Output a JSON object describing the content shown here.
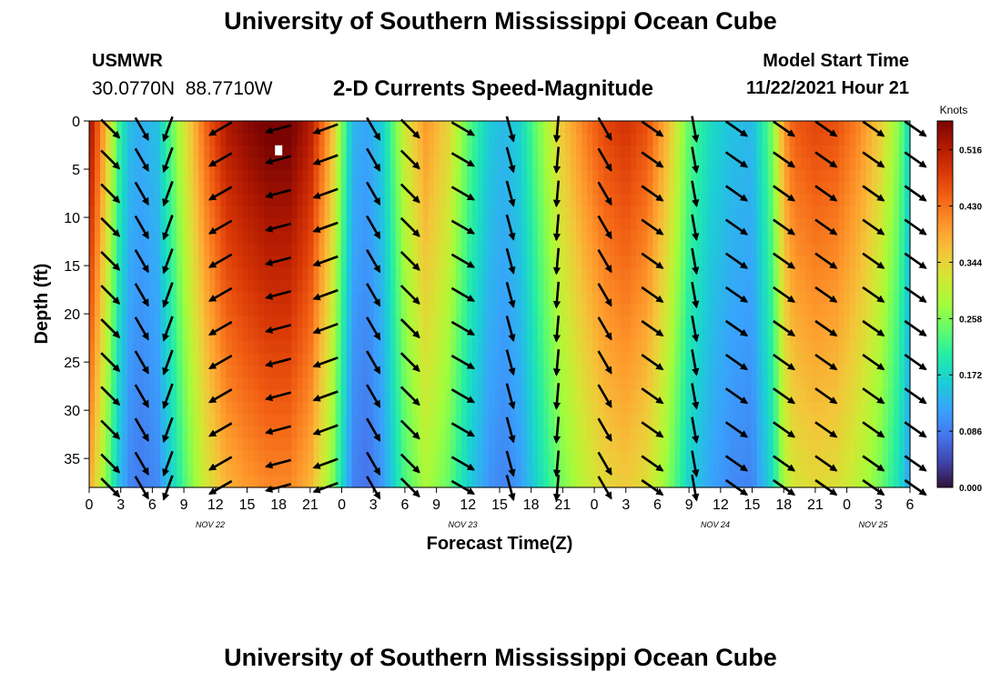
{
  "header": {
    "title": "University of Southern Mississippi Ocean Cube",
    "station": "USMWR",
    "latitude": "30.0770N",
    "longitude": "88.7710W",
    "subtitle": "2-D Currents Speed-Magnitude",
    "model_start_label": "Model Start Time",
    "model_start_value": "11/22/2021 Hour 21"
  },
  "footer": {
    "title": "University of Southern Mississippi Ocean Cube"
  },
  "chart_data": {
    "type": "heatmap",
    "xlabel": "Forecast Time(Z)",
    "ylabel": "Depth (ft)",
    "x_range_hours": [
      0,
      78
    ],
    "y_range_ft": [
      0,
      38
    ],
    "y_ticks": [
      0,
      5,
      10,
      15,
      20,
      25,
      30,
      35
    ],
    "x_tick_labels": [
      "0",
      "3",
      "6",
      "9",
      "12",
      "15",
      "18",
      "21",
      "0",
      "3",
      "6",
      "9",
      "12",
      "15",
      "18",
      "21",
      "0",
      "3",
      "6",
      "9",
      "12",
      "15",
      "18",
      "21",
      "0",
      "3",
      "6"
    ],
    "x_tick_hours": [
      0,
      3,
      6,
      9,
      12,
      15,
      18,
      21,
      24,
      27,
      30,
      33,
      36,
      39,
      42,
      45,
      48,
      51,
      54,
      57,
      60,
      63,
      66,
      69,
      72,
      75,
      78
    ],
    "date_labels": [
      {
        "label": "NOV 22",
        "hour": 11.5
      },
      {
        "label": "NOV 23",
        "hour": 35.5
      },
      {
        "label": "NOV 24",
        "hour": 59.5
      },
      {
        "label": "NOV 25",
        "hour": 74.5
      }
    ],
    "colorbar": {
      "units": "Knots",
      "ticks": [
        "0.516",
        "0.430",
        "0.344",
        "0.258",
        "0.172",
        "0.086",
        "0.000"
      ],
      "tick_values": [
        0.516,
        0.43,
        0.344,
        0.258,
        0.172,
        0.086,
        0.0
      ],
      "range": [
        0,
        0.56
      ]
    },
    "speed_profile": {
      "description": "current speed (knots) vs forecast hour at surface; speed decreases slightly with depth",
      "hours": [
        0,
        1.5,
        3,
        4,
        5,
        6.5,
        9,
        11,
        13,
        15,
        17,
        19,
        21,
        23,
        25,
        26.5,
        28,
        30,
        32,
        34,
        36,
        38,
        39.5,
        41,
        43,
        45,
        47,
        49,
        51,
        53,
        55,
        57,
        59,
        61,
        63,
        65,
        66,
        67,
        69,
        71,
        73,
        75,
        77,
        78
      ],
      "speed": [
        0.52,
        0.36,
        0.18,
        0.12,
        0.11,
        0.13,
        0.3,
        0.42,
        0.5,
        0.53,
        0.55,
        0.55,
        0.5,
        0.36,
        0.12,
        0.1,
        0.15,
        0.3,
        0.38,
        0.33,
        0.22,
        0.14,
        0.12,
        0.15,
        0.25,
        0.34,
        0.4,
        0.45,
        0.47,
        0.44,
        0.35,
        0.22,
        0.16,
        0.13,
        0.12,
        0.24,
        0.38,
        0.43,
        0.45,
        0.44,
        0.4,
        0.34,
        0.24,
        0.15
      ]
    },
    "depth_attenuation": 0.25,
    "arrow_hours": [
      2,
      5,
      7.5,
      12.5,
      18,
      22.5,
      27,
      30.5,
      35.5,
      40,
      44.5,
      49,
      53.5,
      57.5,
      61.5,
      66,
      70,
      74.5,
      78.5
    ],
    "arrow_depths": [
      0.8,
      4,
      7.5,
      11,
      14.5,
      18,
      21.5,
      25,
      28.5,
      32,
      35.5,
      38
    ],
    "arrow_angles_deg": [
      45,
      60,
      110,
      150,
      165,
      160,
      60,
      45,
      30,
      75,
      95,
      60,
      35,
      80,
      35,
      35,
      35,
      35,
      35
    ],
    "arrow_note": "angles measured clockwise from east (screen convention, 90 = pointing down)",
    "marker": {
      "hour": 18,
      "depth": 3.0
    }
  }
}
